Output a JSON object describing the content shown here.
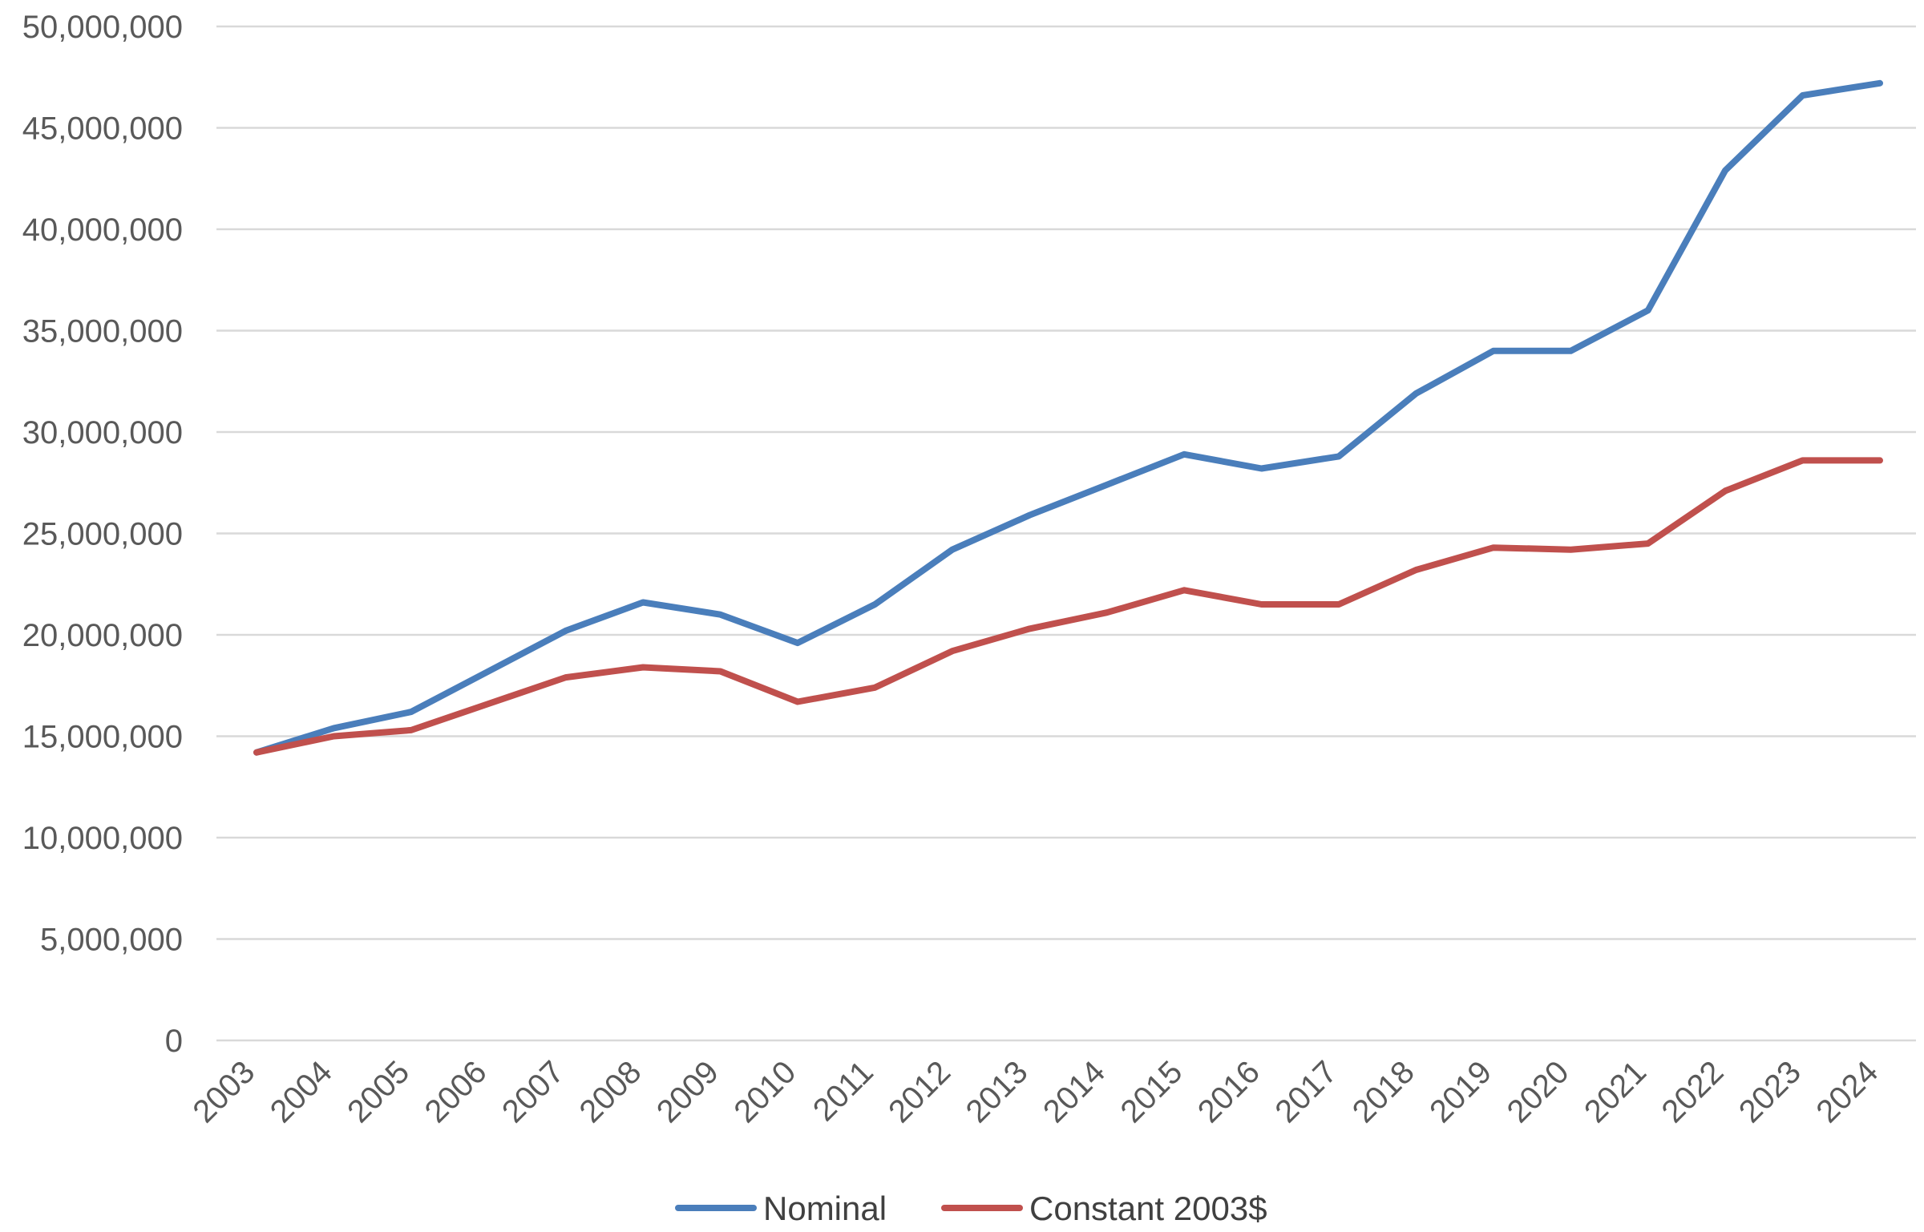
{
  "chart_data": {
    "type": "line",
    "title": "",
    "xlabel": "",
    "ylabel": "",
    "ylim": [
      0,
      50000000
    ],
    "y_ticks": [
      0,
      5000000,
      10000000,
      15000000,
      20000000,
      25000000,
      30000000,
      35000000,
      40000000,
      45000000,
      50000000
    ],
    "y_tick_labels": [
      "0",
      "5,000,000",
      "10,000,000",
      "15,000,000",
      "20,000,000",
      "25,000,000",
      "30,000,000",
      "35,000,000",
      "40,000,000",
      "45,000,000",
      "50,000,000"
    ],
    "categories": [
      "2003",
      "2004",
      "2005",
      "2006",
      "2007",
      "2008",
      "2009",
      "2010",
      "2011",
      "2012",
      "2013",
      "2014",
      "2015",
      "2016",
      "2017",
      "2018",
      "2019",
      "2020",
      "2021",
      "2022",
      "2023",
      "2024"
    ],
    "grid": true,
    "legend_position": "bottom",
    "series": [
      {
        "name": "Nominal",
        "color": "#4a7ebb",
        "values": [
          14200000,
          15400000,
          16200000,
          18200000,
          20200000,
          21600000,
          21000000,
          19600000,
          21500000,
          24200000,
          25900000,
          27400000,
          28900000,
          28200000,
          28800000,
          31900000,
          34000000,
          34000000,
          36000000,
          42900000,
          46600000,
          47200000
        ]
      },
      {
        "name": "Constant 2003$",
        "color": "#c0504d",
        "values": [
          14200000,
          15000000,
          15300000,
          16600000,
          17900000,
          18400000,
          18200000,
          16700000,
          17400000,
          19200000,
          20300000,
          21100000,
          22200000,
          21500000,
          21500000,
          23200000,
          24300000,
          24200000,
          24500000,
          27100000,
          28600000,
          28600000
        ]
      }
    ]
  }
}
